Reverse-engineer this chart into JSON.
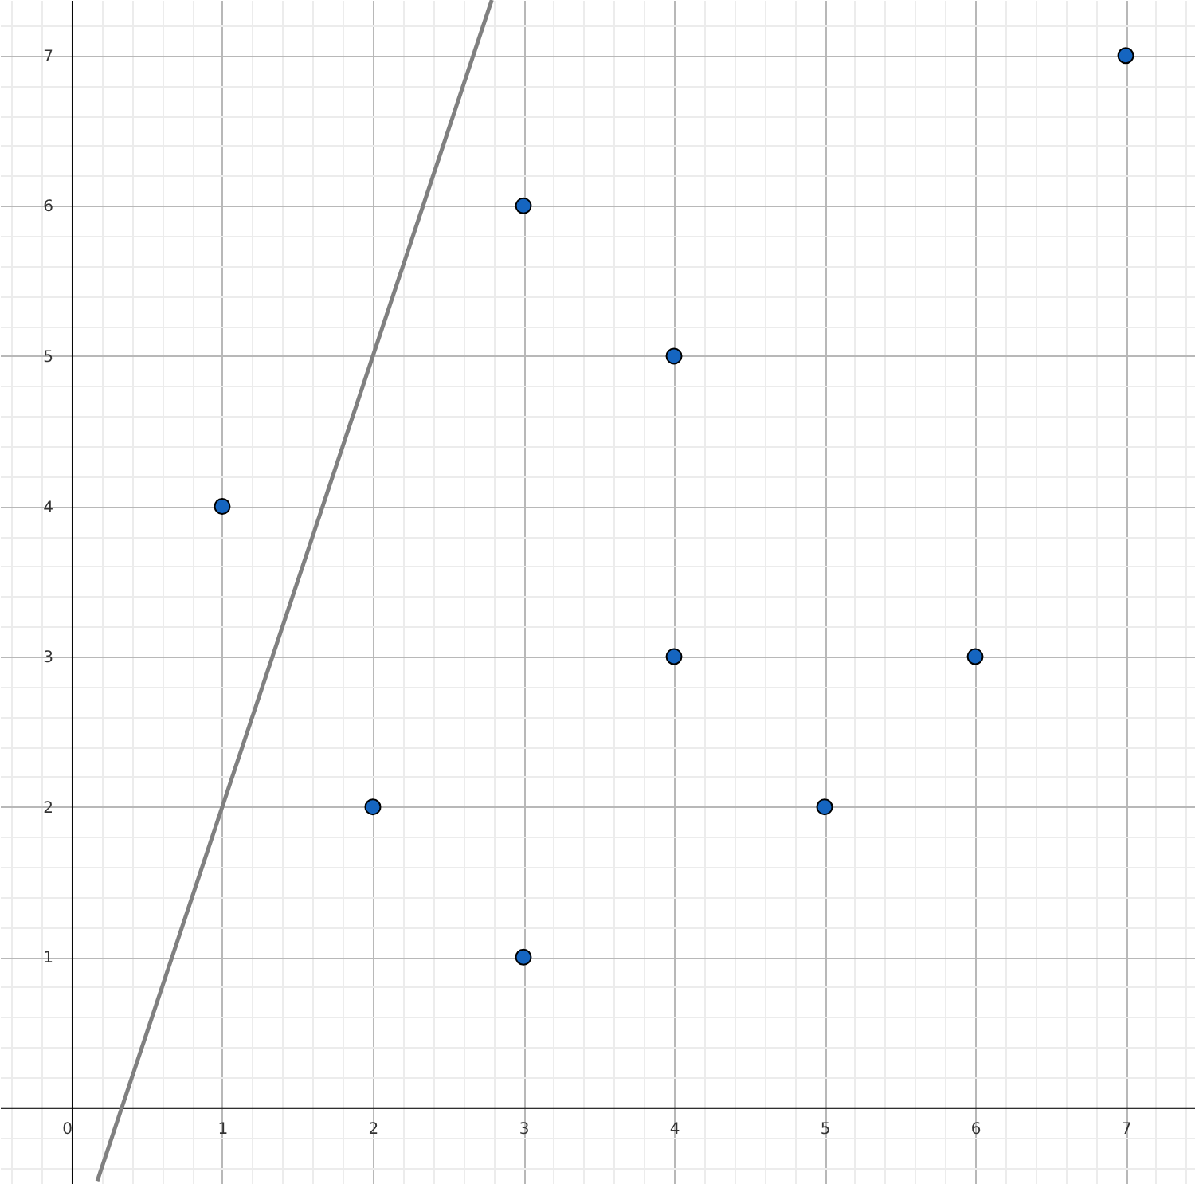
{
  "chart_data": {
    "type": "scatter",
    "xlim": [
      -0.476,
      7.46
    ],
    "ylim": [
      -0.51,
      7.37
    ],
    "xticks": [
      {
        "value": -0.4,
        "label": null
      },
      {
        "value": -0.2,
        "label": null
      },
      0,
      {
        "value": 0.2,
        "label": null
      },
      {
        "value": 0.4,
        "label": null
      },
      {
        "value": 0.6,
        "label": null
      },
      {
        "value": 0.8,
        "label": null
      },
      1,
      {
        "value": 1.2,
        "label": null
      },
      {
        "value": 1.4,
        "label": null
      },
      {
        "value": 1.6,
        "label": null
      },
      {
        "value": 1.8,
        "label": null
      },
      2,
      {
        "value": 2.2,
        "label": null
      },
      {
        "value": 2.4,
        "label": null
      },
      {
        "value": 2.6,
        "label": null
      },
      {
        "value": 2.8,
        "label": null
      },
      3,
      {
        "value": 3.2,
        "label": null
      },
      {
        "value": 3.4,
        "label": null
      },
      {
        "value": 3.6,
        "label": null
      },
      {
        "value": 3.8,
        "label": null
      },
      4,
      {
        "value": 4.2,
        "label": null
      },
      {
        "value": 4.4,
        "label": null
      },
      {
        "value": 4.6,
        "label": null
      },
      {
        "value": 4.8,
        "label": null
      },
      5,
      {
        "value": 5.2,
        "label": null
      },
      {
        "value": 5.4,
        "label": null
      },
      {
        "value": 5.6,
        "label": null
      },
      {
        "value": 5.8,
        "label": null
      },
      6,
      {
        "value": 6.2,
        "label": null
      },
      {
        "value": 6.4,
        "label": null
      },
      {
        "value": 6.6,
        "label": null
      },
      {
        "value": 6.8,
        "label": null
      },
      7,
      {
        "value": 7.2,
        "label": null
      },
      {
        "value": 7.4,
        "label": null
      }
    ],
    "yticks": [
      {
        "value": -0.4,
        "label": null
      },
      {
        "value": -0.2,
        "label": null
      },
      {
        "value": 0,
        "label": null
      },
      {
        "value": 0.2,
        "label": null
      },
      {
        "value": 0.4,
        "label": null
      },
      {
        "value": 0.6,
        "label": null
      },
      {
        "value": 0.8,
        "label": null
      },
      1,
      {
        "value": 1.2,
        "label": null
      },
      {
        "value": 1.4,
        "label": null
      },
      {
        "value": 1.6,
        "label": null
      },
      {
        "value": 1.8,
        "label": null
      },
      2,
      {
        "value": 2.2,
        "label": null
      },
      {
        "value": 2.4,
        "label": null
      },
      {
        "value": 2.6,
        "label": null
      },
      {
        "value": 2.8,
        "label": null
      },
      3,
      {
        "value": 3.2,
        "label": null
      },
      {
        "value": 3.4,
        "label": null
      },
      {
        "value": 3.6,
        "label": null
      },
      {
        "value": 3.8,
        "label": null
      },
      4,
      {
        "value": 4.2,
        "label": null
      },
      {
        "value": 4.4,
        "label": null
      },
      {
        "value": 4.6,
        "label": null
      },
      {
        "value": 4.8,
        "label": null
      },
      5,
      {
        "value": 5.2,
        "label": null
      },
      {
        "value": 5.4,
        "label": null
      },
      {
        "value": 5.6,
        "label": null
      },
      {
        "value": 5.8,
        "label": null
      },
      6,
      {
        "value": 6.2,
        "label": null
      },
      {
        "value": 6.4,
        "label": null
      },
      {
        "value": 6.6,
        "label": null
      },
      {
        "value": 6.8,
        "label": null
      },
      7,
      {
        "value": 7.2,
        "label": null
      }
    ],
    "grid": true,
    "marker": "circle",
    "series": [
      {
        "type": "line",
        "color": "#808080",
        "line_style": "solid",
        "marker": "none",
        "x": [
          0.17,
          2.79
        ],
        "values": [
          -0.49,
          7.37
        ]
      },
      {
        "type": "scatter",
        "color": "#1565c0",
        "x": [
          1,
          2,
          3,
          3,
          4,
          4,
          5,
          6,
          7
        ],
        "values": [
          4,
          2,
          6,
          1,
          5,
          3,
          2,
          3,
          7
        ]
      }
    ]
  }
}
